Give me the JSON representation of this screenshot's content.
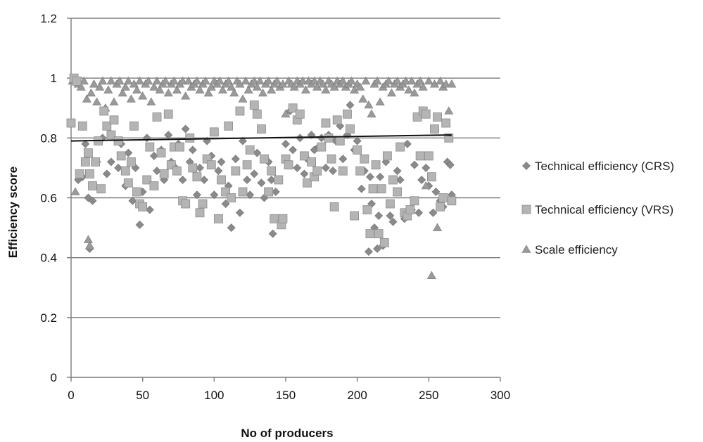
{
  "chart_data": {
    "type": "scatter",
    "title": "",
    "xlabel": "No of producers",
    "ylabel": "Efficiency score",
    "xlim": [
      0,
      300
    ],
    "ylim": [
      0,
      1.2
    ],
    "x_ticks": [
      "0",
      "50",
      "100",
      "150",
      "200",
      "250",
      "300"
    ],
    "y_ticks": [
      "0",
      "0.2",
      "0.4",
      "0.6",
      "0.8",
      "1",
      "1.2"
    ],
    "grid": "horizontal",
    "legend_position": "right",
    "trendline": {
      "series": "Technical efficiency (VRS)",
      "x": [
        0,
        266
      ],
      "y": [
        0.79,
        0.81
      ]
    },
    "colors": {
      "tech_crs": "#8a8a8a",
      "tech_vrs": "#b4b4b4",
      "scale": "#9a9a9a",
      "grid": "#7a7a7a",
      "trend": "#111111"
    },
    "series": [
      {
        "name": "Technical efficiency (CRS)",
        "marker": "diamond",
        "x": [
          2,
          5,
          8,
          10,
          12,
          13,
          15,
          18,
          20,
          22,
          25,
          28,
          30,
          33,
          35,
          38,
          40,
          43,
          45,
          48,
          50,
          53,
          55,
          58,
          60,
          63,
          65,
          68,
          70,
          73,
          75,
          78,
          80,
          83,
          85,
          88,
          90,
          93,
          95,
          98,
          100,
          103,
          105,
          108,
          110,
          112,
          115,
          118,
          120,
          123,
          125,
          128,
          130,
          133,
          135,
          138,
          140,
          141,
          143,
          145,
          147,
          150,
          153,
          155,
          158,
          160,
          163,
          165,
          168,
          170,
          173,
          175,
          178,
          180,
          183,
          185,
          188,
          190,
          193,
          195,
          198,
          200,
          203,
          205,
          208,
          209,
          210,
          212,
          214,
          215,
          216,
          218,
          220,
          223,
          225,
          228,
          230,
          233,
          235,
          238,
          240,
          243,
          245,
          248,
          250,
          253,
          255,
          258,
          260,
          263,
          265,
          266
        ],
        "y": [
          0.99,
          0.66,
          0.67,
          0.78,
          0.6,
          0.43,
          0.59,
          0.72,
          0.63,
          0.8,
          0.68,
          0.72,
          0.86,
          0.7,
          0.78,
          0.64,
          0.75,
          0.59,
          0.7,
          0.51,
          0.62,
          0.8,
          0.56,
          0.74,
          0.69,
          0.76,
          0.66,
          0.81,
          0.72,
          0.7,
          0.78,
          0.66,
          0.83,
          0.72,
          0.76,
          0.61,
          0.7,
          0.66,
          0.79,
          0.74,
          0.61,
          0.69,
          0.72,
          0.58,
          0.64,
          0.5,
          0.73,
          0.55,
          0.79,
          0.66,
          0.61,
          0.68,
          0.75,
          0.65,
          0.6,
          0.72,
          0.66,
          0.48,
          0.62,
          0.66,
          0.51,
          0.78,
          0.89,
          0.76,
          0.7,
          0.8,
          0.68,
          0.73,
          0.81,
          0.76,
          0.77,
          0.8,
          0.7,
          0.81,
          0.69,
          0.79,
          0.84,
          0.73,
          0.81,
          0.91,
          0.76,
          0.79,
          0.63,
          0.69,
          0.42,
          0.67,
          0.58,
          0.5,
          0.43,
          0.54,
          0.67,
          0.44,
          0.72,
          0.54,
          0.52,
          0.69,
          0.66,
          0.53,
          0.78,
          0.56,
          0.71,
          0.55,
          0.66,
          0.7,
          0.64,
          0.55,
          0.62,
          0.59,
          0.57,
          0.72,
          0.71,
          0.61
        ]
      },
      {
        "name": "Technical efficiency (VRS)",
        "marker": "square",
        "x": [
          0,
          2,
          4,
          6,
          8,
          10,
          12,
          13,
          15,
          17,
          19,
          21,
          23,
          25,
          28,
          30,
          33,
          35,
          38,
          40,
          42,
          44,
          46,
          48,
          50,
          53,
          55,
          58,
          60,
          63,
          65,
          68,
          70,
          72,
          74,
          76,
          78,
          80,
          83,
          85,
          88,
          90,
          92,
          95,
          98,
          100,
          103,
          105,
          108,
          110,
          112,
          115,
          118,
          120,
          123,
          125,
          128,
          130,
          133,
          135,
          138,
          140,
          142,
          145,
          147,
          148,
          150,
          152,
          155,
          158,
          160,
          163,
          165,
          168,
          170,
          172,
          175,
          178,
          180,
          182,
          184,
          186,
          188,
          190,
          193,
          195,
          198,
          200,
          202,
          205,
          207,
          209,
          211,
          213,
          215,
          217,
          219,
          221,
          223,
          225,
          228,
          230,
          233,
          235,
          237,
          240,
          242,
          244,
          246,
          248,
          250,
          252,
          254,
          256,
          258,
          260,
          262,
          264,
          266
        ],
        "y": [
          0.85,
          1.0,
          0.99,
          0.68,
          0.84,
          0.72,
          0.75,
          0.68,
          0.64,
          0.72,
          0.79,
          0.63,
          0.89,
          0.84,
          0.81,
          0.86,
          0.79,
          0.74,
          0.69,
          0.65,
          0.72,
          0.84,
          0.62,
          0.58,
          0.57,
          0.66,
          0.77,
          0.64,
          0.87,
          0.75,
          0.68,
          0.88,
          0.71,
          0.77,
          0.69,
          0.77,
          0.59,
          0.58,
          0.8,
          0.7,
          0.67,
          0.55,
          0.58,
          0.73,
          0.71,
          0.82,
          0.53,
          0.66,
          0.62,
          0.84,
          0.6,
          0.69,
          0.89,
          0.62,
          0.71,
          0.76,
          0.91,
          0.88,
          0.83,
          0.73,
          0.62,
          0.69,
          0.53,
          0.66,
          0.51,
          0.53,
          0.73,
          0.71,
          0.9,
          0.86,
          0.88,
          0.74,
          0.65,
          0.72,
          0.67,
          0.69,
          0.77,
          0.85,
          0.8,
          0.73,
          0.57,
          0.86,
          0.79,
          0.69,
          0.88,
          0.83,
          0.54,
          0.76,
          0.69,
          0.73,
          0.56,
          0.48,
          0.63,
          0.71,
          0.48,
          0.63,
          0.45,
          0.74,
          0.58,
          0.66,
          0.62,
          0.77,
          0.55,
          0.54,
          0.56,
          0.59,
          0.87,
          0.74,
          0.89,
          0.88,
          0.74,
          0.67,
          0.83,
          0.87,
          0.57,
          0.6,
          0.85,
          0.8,
          0.59
        ]
      },
      {
        "name": "Scale efficiency",
        "marker": "triangle",
        "x": [
          1,
          3,
          5,
          7,
          9,
          11,
          12,
          13,
          14,
          16,
          18,
          20,
          22,
          24,
          26,
          28,
          30,
          32,
          34,
          36,
          38,
          40,
          42,
          44,
          46,
          48,
          50,
          52,
          54,
          56,
          58,
          60,
          62,
          64,
          66,
          68,
          70,
          72,
          74,
          76,
          78,
          80,
          82,
          84,
          86,
          88,
          90,
          92,
          94,
          96,
          98,
          100,
          102,
          104,
          106,
          108,
          110,
          112,
          114,
          116,
          118,
          120,
          122,
          124,
          126,
          128,
          130,
          132,
          134,
          136,
          138,
          140,
          142,
          144,
          146,
          148,
          150,
          152,
          154,
          156,
          158,
          160,
          162,
          164,
          166,
          168,
          170,
          172,
          174,
          176,
          178,
          180,
          182,
          184,
          186,
          188,
          190,
          192,
          194,
          196,
          198,
          200,
          202,
          204,
          206,
          208,
          210,
          212,
          214,
          216,
          218,
          220,
          222,
          224,
          226,
          228,
          230,
          232,
          234,
          236,
          238,
          240,
          242,
          244,
          246,
          248,
          250,
          252,
          254,
          256,
          258,
          260,
          262,
          264,
          266
        ],
        "y": [
          0.99,
          0.62,
          0.98,
          0.97,
          0.99,
          0.93,
          0.46,
          0.44,
          0.95,
          0.98,
          0.92,
          0.97,
          0.99,
          0.9,
          0.96,
          0.99,
          0.92,
          0.98,
          0.99,
          0.95,
          0.97,
          0.99,
          0.93,
          0.98,
          0.96,
          0.99,
          0.94,
          0.98,
          0.99,
          0.92,
          0.97,
          0.99,
          0.96,
          0.98,
          0.99,
          0.95,
          0.98,
          0.99,
          0.96,
          0.98,
          0.99,
          0.94,
          0.99,
          0.97,
          0.98,
          0.99,
          0.96,
          0.98,
          0.99,
          0.95,
          0.97,
          0.99,
          0.98,
          0.99,
          0.96,
          0.98,
          0.99,
          0.97,
          0.95,
          0.99,
          0.98,
          0.93,
          0.99,
          0.96,
          0.98,
          0.99,
          0.97,
          0.99,
          0.95,
          0.98,
          0.99,
          0.96,
          0.98,
          0.99,
          0.97,
          0.98,
          0.88,
          0.99,
          0.98,
          0.97,
          0.99,
          0.98,
          0.99,
          0.96,
          0.99,
          0.98,
          0.99,
          0.97,
          0.99,
          0.98,
          0.96,
          0.99,
          0.98,
          0.97,
          0.99,
          0.98,
          0.99,
          0.97,
          0.98,
          0.99,
          0.96,
          0.98,
          0.97,
          0.93,
          0.99,
          0.91,
          0.88,
          0.98,
          0.99,
          0.92,
          0.97,
          0.98,
          0.99,
          0.95,
          0.98,
          0.99,
          0.97,
          0.98,
          0.99,
          0.96,
          0.99,
          0.95,
          0.98,
          0.99,
          0.97,
          0.64,
          0.99,
          0.34,
          0.98,
          0.5,
          0.99,
          0.97,
          0.98,
          0.89,
          0.98
        ]
      }
    ]
  }
}
